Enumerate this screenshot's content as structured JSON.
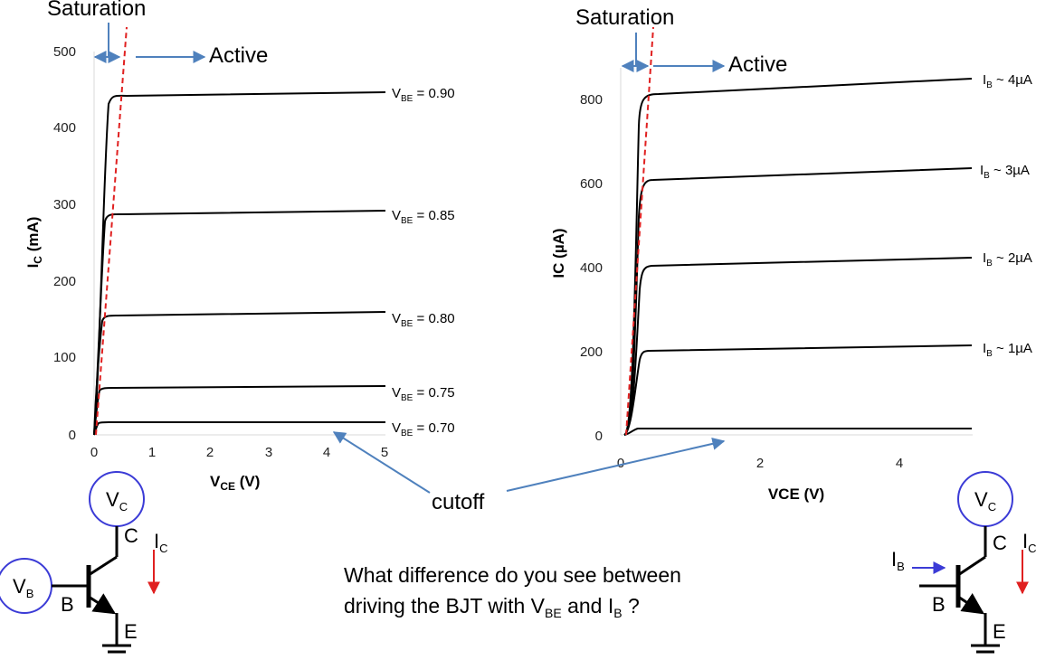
{
  "colors": {
    "curve": "#000000",
    "boundary": "#e02020",
    "arrow": "#4f81bd",
    "circle": "#3b3bd6",
    "axis": "#d9d9d9"
  },
  "left_chart": {
    "saturation_label": "Saturation",
    "active_label": "Active",
    "ylabel_main": "I",
    "ylabel_sub": "C",
    "ylabel_unit": " (mA)",
    "xlabel_main": "V",
    "xlabel_sub": "CE",
    "xlabel_unit": " (V)",
    "xticks": [
      "0",
      "1",
      "2",
      "3",
      "4",
      "5"
    ],
    "yticks": [
      "0",
      "100",
      "200",
      "300",
      "400",
      "500"
    ],
    "curves": [
      {
        "label_main": "V",
        "label_sub": "BE",
        "label_rest": " = 0.90"
      },
      {
        "label_main": "V",
        "label_sub": "BE",
        "label_rest": " = 0.85"
      },
      {
        "label_main": "V",
        "label_sub": "BE",
        "label_rest": " = 0.80"
      },
      {
        "label_main": "V",
        "label_sub": "BE",
        "label_rest": " = 0.75"
      },
      {
        "label_main": "V",
        "label_sub": "BE",
        "label_rest": " = 0.70"
      }
    ]
  },
  "right_chart": {
    "saturation_label": "Saturation",
    "active_label": "Active",
    "ylabel": "IC (µA)",
    "xlabel": "VCE (V)",
    "xticks": [
      "0",
      "2",
      "4"
    ],
    "yticks": [
      "0",
      "200",
      "400",
      "600",
      "800"
    ],
    "curves": [
      {
        "label_main": "I",
        "label_sub": "B",
        "label_rest": " ~ 4µA"
      },
      {
        "label_main": "I",
        "label_sub": "B",
        "label_rest": " ~ 3µA"
      },
      {
        "label_main": "I",
        "label_sub": "B",
        "label_rest": " ~ 2µA"
      },
      {
        "label_main": "I",
        "label_sub": "B",
        "label_rest": " ~ 1µA"
      }
    ]
  },
  "cutoff_label": "cutoff",
  "question": {
    "line1": "What difference do you see between",
    "line2_a": "driving the BJT with V",
    "line2_sub1": "BE",
    "line2_b": " and I",
    "line2_sub2": "B",
    "line2_c": " ?"
  },
  "left_circuit": {
    "vc_main": "V",
    "vc_sub": "C",
    "vb_main": "V",
    "vb_sub": "B",
    "c_label": "C",
    "b_label": "B",
    "e_label": "E",
    "ic_main": "I",
    "ic_sub": "C"
  },
  "right_circuit": {
    "vc_main": "V",
    "vc_sub": "C",
    "ib_main": "I",
    "ib_sub": "B",
    "c_label": "C",
    "b_label": "B",
    "e_label": "E",
    "ic_main": "I",
    "ic_sub": "C"
  }
}
